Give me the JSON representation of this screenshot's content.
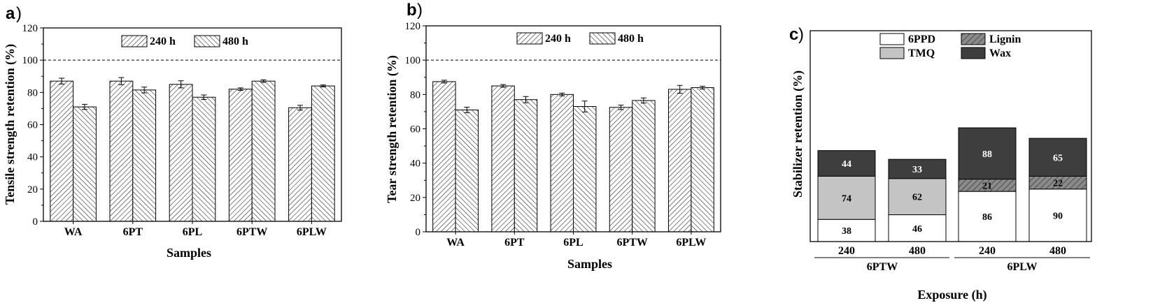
{
  "chart_data": [
    {
      "panel": "a",
      "type": "bar",
      "title": "",
      "xlabel": "Samples",
      "ylabel": "Tensile strength retention (%)",
      "ylim": [
        0,
        120
      ],
      "yticks": [
        "0",
        "20",
        "40",
        "60",
        "80",
        "100",
        "120"
      ],
      "categories": [
        "WA",
        "6PT",
        "6PL",
        "6PTW",
        "6PLW"
      ],
      "series": [
        {
          "name": "240 h",
          "values": [
            87,
            87,
            85,
            82,
            70.5
          ],
          "errors": [
            1.8,
            2.2,
            2.2,
            0.8,
            1.5
          ]
        },
        {
          "name": "480 h",
          "values": [
            71,
            81.5,
            77,
            87,
            84
          ],
          "errors": [
            1.6,
            1.8,
            1.4,
            0.8,
            0.6
          ]
        }
      ],
      "reference_line": 100,
      "legend": "top-center"
    },
    {
      "panel": "b",
      "type": "bar",
      "title": "",
      "xlabel": "Samples",
      "ylabel": "Tear strength retention (%)",
      "ylim": [
        0,
        120
      ],
      "yticks": [
        "0",
        "20",
        "40",
        "60",
        "80",
        "100",
        "120"
      ],
      "categories": [
        "WA",
        "6PT",
        "6PL",
        "6PTW",
        "6PLW"
      ],
      "series": [
        {
          "name": "240 h",
          "values": [
            87.5,
            85,
            80,
            72.5,
            83
          ],
          "errors": [
            0.8,
            0.8,
            0.8,
            1.3,
            2.3
          ]
        },
        {
          "name": "480 h",
          "values": [
            71,
            77,
            73,
            76.5,
            84
          ],
          "errors": [
            1.6,
            1.8,
            3.2,
            1.5,
            0.8
          ]
        }
      ],
      "reference_line": 100,
      "legend": "top-center"
    },
    {
      "panel": "c",
      "type": "bar",
      "stacked": true,
      "title": "",
      "xlabel": "Exposure (h)",
      "ylabel": "Stabilizer retention (%)",
      "categories": [
        "240",
        "480",
        "240",
        "480"
      ],
      "groups": [
        "6PTW",
        "6PLW"
      ],
      "group_of_category": [
        "6PTW",
        "6PTW",
        "6PLW",
        "6PLW"
      ],
      "series": [
        {
          "name": "6PPD",
          "values": [
            38,
            46,
            86,
            90
          ]
        },
        {
          "name": "TMQ",
          "values": [
            74,
            62,
            null,
            null
          ]
        },
        {
          "name": "Lignin",
          "values": [
            null,
            null,
            21,
            22
          ]
        },
        {
          "name": "Wax",
          "values": [
            44,
            33,
            88,
            65
          ]
        }
      ],
      "legend": "top-center"
    }
  ],
  "colors": {
    "6PPD": "#ffffff",
    "TMQ": "#c4c4c4",
    "Lignin": "#8a8a8a",
    "Wax": "#3e3e3e",
    "axis": "#000000"
  }
}
